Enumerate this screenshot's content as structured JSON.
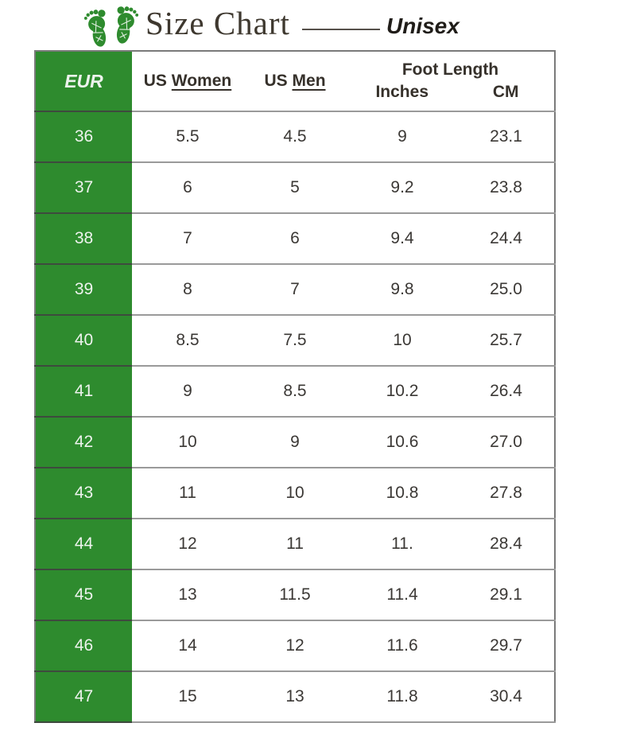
{
  "header": {
    "title": "Size Chart",
    "subtitle": "Unisex",
    "logo": "green-baby-footprints"
  },
  "colors": {
    "green": "#2e8b2e",
    "title_text": "#3e382f",
    "subtitle_text": "#201d19",
    "table_text": "#3b3835",
    "row_border": "#9a9a9a",
    "outer_border": "#7a7a7a"
  },
  "chart_data": {
    "type": "table",
    "title": "Size Chart",
    "subtitle": "Unisex",
    "columns": [
      "EUR",
      "US Women",
      "US Men",
      "Foot Length Inches",
      "Foot Length CM"
    ],
    "header": {
      "eur": "EUR",
      "us_women_prefix": "US",
      "us_women_word": "Women",
      "us_men_prefix": "US",
      "us_men_word": "Men",
      "foot_length": "Foot Length",
      "inches": "Inches",
      "cm": "CM"
    },
    "rows": [
      {
        "eur": "36",
        "us_women": "5.5",
        "us_men": "4.5",
        "inches": "9",
        "cm": "23.1"
      },
      {
        "eur": "37",
        "us_women": "6",
        "us_men": "5",
        "inches": "9.2",
        "cm": "23.8"
      },
      {
        "eur": "38",
        "us_women": "7",
        "us_men": "6",
        "inches": "9.4",
        "cm": "24.4"
      },
      {
        "eur": "39",
        "us_women": "8",
        "us_men": "7",
        "inches": "9.8",
        "cm": "25.0"
      },
      {
        "eur": "40",
        "us_women": "8.5",
        "us_men": "7.5",
        "inches": "10",
        "cm": "25.7"
      },
      {
        "eur": "41",
        "us_women": "9",
        "us_men": "8.5",
        "inches": "10.2",
        "cm": "26.4"
      },
      {
        "eur": "42",
        "us_women": "10",
        "us_men": "9",
        "inches": "10.6",
        "cm": "27.0"
      },
      {
        "eur": "43",
        "us_women": "11",
        "us_men": "10",
        "inches": "10.8",
        "cm": "27.8"
      },
      {
        "eur": "44",
        "us_women": "12",
        "us_men": "11",
        "inches": "11.",
        "cm": "28.4"
      },
      {
        "eur": "45",
        "us_women": "13",
        "us_men": "11.5",
        "inches": "11.4",
        "cm": "29.1"
      },
      {
        "eur": "46",
        "us_women": "14",
        "us_men": "12",
        "inches": "11.6",
        "cm": "29.7"
      },
      {
        "eur": "47",
        "us_women": "15",
        "us_men": "13",
        "inches": "11.8",
        "cm": "30.4"
      }
    ]
  }
}
